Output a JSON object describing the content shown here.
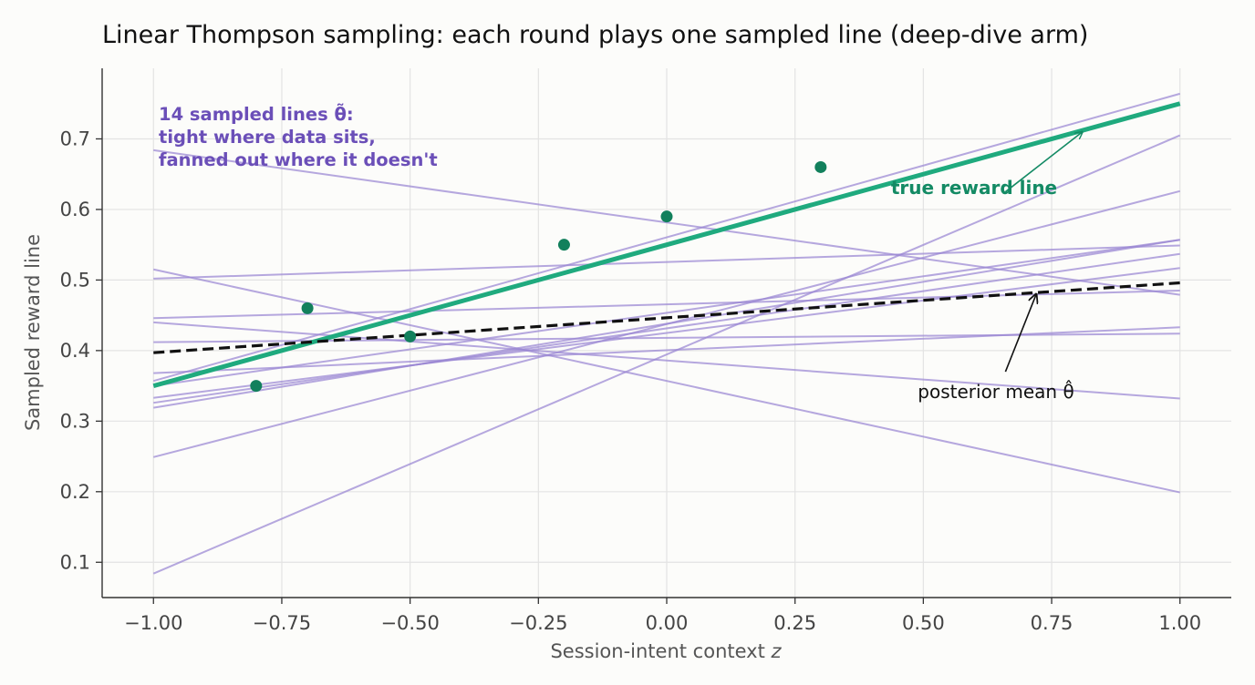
{
  "chart_data": {
    "type": "line",
    "title": "Linear Thompson sampling: each round plays one sampled line (deep-dive arm)",
    "xlabel": "Session-intent context",
    "xlabel_var": "z",
    "ylabel": "Sampled reward line",
    "xlim": [
      -1.1,
      1.1
    ],
    "ylim": [
      0.05,
      0.8
    ],
    "xticks": [
      -1.0,
      -0.75,
      -0.5,
      -0.25,
      0.0,
      0.25,
      0.5,
      0.75,
      1.0
    ],
    "xtick_labels": [
      "−1.00",
      "−0.75",
      "−0.50",
      "−0.25",
      "0.00",
      "0.25",
      "0.50",
      "0.75",
      "1.00"
    ],
    "yticks": [
      0.1,
      0.2,
      0.3,
      0.4,
      0.5,
      0.6,
      0.7
    ],
    "ytick_labels": [
      "0.1",
      "0.2",
      "0.3",
      "0.4",
      "0.5",
      "0.6",
      "0.7"
    ],
    "grid": true,
    "colors": {
      "sampled": "#9a86d2",
      "true_line": "#1faa7e",
      "points": "#12805c",
      "mean": "#111111"
    },
    "sampled_lines": [
      {
        "y_at_minus1": 0.684,
        "y_at_plus1": 0.479
      },
      {
        "y_at_minus1": 0.515,
        "y_at_plus1": 0.199
      },
      {
        "y_at_minus1": 0.502,
        "y_at_plus1": 0.549
      },
      {
        "y_at_minus1": 0.446,
        "y_at_plus1": 0.485
      },
      {
        "y_at_minus1": 0.44,
        "y_at_plus1": 0.332
      },
      {
        "y_at_minus1": 0.412,
        "y_at_plus1": 0.424
      },
      {
        "y_at_minus1": 0.368,
        "y_at_plus1": 0.433
      },
      {
        "y_at_minus1": 0.35,
        "y_at_plus1": 0.557
      },
      {
        "y_at_minus1": 0.333,
        "y_at_plus1": 0.517
      },
      {
        "y_at_minus1": 0.326,
        "y_at_plus1": 0.537
      },
      {
        "y_at_minus1": 0.319,
        "y_at_plus1": 0.557
      },
      {
        "y_at_minus1": 0.249,
        "y_at_plus1": 0.626
      },
      {
        "y_at_minus1": 0.084,
        "y_at_plus1": 0.705
      },
      {
        "y_at_minus1": 0.357,
        "y_at_plus1": 0.764
      }
    ],
    "true_line": {
      "y_at_minus1": 0.35,
      "y_at_plus1": 0.75
    },
    "posterior_mean": {
      "y_at_minus1": 0.397,
      "y_at_plus1": 0.496
    },
    "observations": {
      "x": [
        -0.8,
        -0.7,
        -0.5,
        -0.2,
        0.0,
        0.3
      ],
      "y": [
        0.35,
        0.46,
        0.42,
        0.55,
        0.59,
        0.66
      ]
    },
    "annotations": {
      "sampled_note": [
        "14 sampled lines θ̃:",
        "tight where data sits,",
        "fanned out where it doesn't"
      ],
      "true_label": "true reward line",
      "mean_label": "posterior mean θ̂",
      "true_arrow": {
        "from": [
          0.66,
          0.625
        ],
        "to": [
          0.81,
          0.71
        ]
      },
      "mean_arrow": {
        "from": [
          0.66,
          0.37
        ],
        "to": [
          0.72,
          0.48
        ]
      }
    }
  }
}
